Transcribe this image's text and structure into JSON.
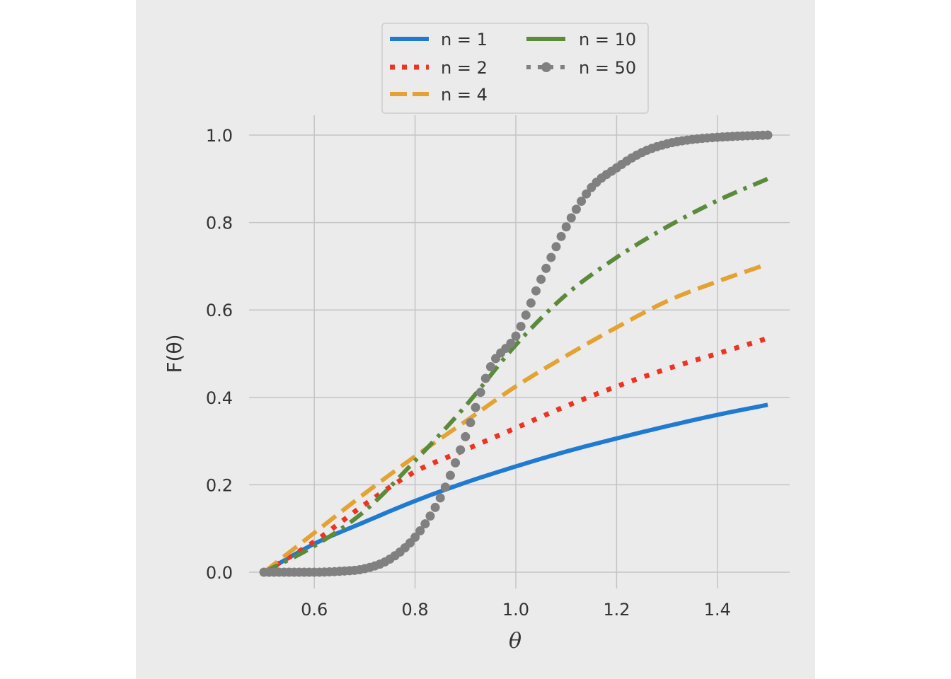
{
  "chart_data": {
    "type": "line",
    "xlabel": "θ",
    "ylabel": "F(θ)",
    "xlim": [
      0.5,
      1.5
    ],
    "ylim": [
      0.0,
      1.0
    ],
    "xticks": [
      0.6,
      0.8,
      1.0,
      1.2,
      1.4
    ],
    "xtick_labels": [
      "0.6",
      "0.8",
      "1.0",
      "1.2",
      "1.4"
    ],
    "yticks": [
      0.0,
      0.2,
      0.4,
      0.6,
      0.8,
      1.0
    ],
    "ytick_labels": [
      "0.0",
      "0.2",
      "0.4",
      "0.6",
      "0.8",
      "1.0"
    ],
    "grid": true,
    "legend_placement": "top-center, two columns, outside above plot",
    "colors": {
      "figure_background": "#ebebeb",
      "plot_background": "#ebebeb",
      "grid": "#c4c4c4",
      "legend_background": "#ebebeb",
      "legend_border": "#cccccc"
    },
    "series": [
      {
        "name": "n = 1",
        "color": "#1f7ad1",
        "style": "solid",
        "x": [
          0.5,
          0.6,
          0.7,
          0.8,
          0.9,
          1.0,
          1.1,
          1.2,
          1.3,
          1.4,
          1.5
        ],
        "y": [
          0.0,
          0.065,
          0.115,
          0.163,
          0.205,
          0.242,
          0.276,
          0.306,
          0.334,
          0.36,
          0.383
        ]
      },
      {
        "name": "n = 2",
        "color": "#ee3322",
        "style": "dotted",
        "x": [
          0.5,
          0.6,
          0.7,
          0.8,
          0.9,
          1.0,
          1.1,
          1.2,
          1.3,
          1.4,
          1.5
        ],
        "y": [
          0.0,
          0.07,
          0.155,
          0.23,
          0.28,
          0.33,
          0.38,
          0.425,
          0.465,
          0.5,
          0.535
        ]
      },
      {
        "name": "n = 4",
        "color": "#e3a232",
        "style": "dashed",
        "x": [
          0.5,
          0.6,
          0.7,
          0.8,
          0.9,
          1.0,
          1.1,
          1.2,
          1.3,
          1.4,
          1.5
        ],
        "y": [
          0.0,
          0.09,
          0.18,
          0.265,
          0.345,
          0.425,
          0.495,
          0.56,
          0.62,
          0.665,
          0.705
        ]
      },
      {
        "name": "n = 10",
        "color": "#5a8a3a",
        "style": "dashdot",
        "x": [
          0.5,
          0.6,
          0.7,
          0.8,
          0.9,
          1.0,
          1.1,
          1.2,
          1.3,
          1.4,
          1.5
        ],
        "y": [
          0.0,
          0.06,
          0.14,
          0.255,
          0.38,
          0.52,
          0.635,
          0.72,
          0.79,
          0.85,
          0.9
        ]
      },
      {
        "name": "n = 50",
        "color": "#808080",
        "style": "dotted-marker",
        "x": [
          0.5,
          0.6,
          0.65,
          0.7,
          0.75,
          0.8,
          0.85,
          0.9,
          0.95,
          1.0,
          1.05,
          1.1,
          1.15,
          1.2,
          1.25,
          1.3,
          1.35,
          1.4,
          1.45,
          1.5
        ],
        "y": [
          0.0,
          0.0,
          0.002,
          0.008,
          0.03,
          0.08,
          0.17,
          0.31,
          0.47,
          0.54,
          0.67,
          0.79,
          0.88,
          0.925,
          0.96,
          0.98,
          0.99,
          0.995,
          0.998,
          1.0
        ]
      }
    ]
  }
}
